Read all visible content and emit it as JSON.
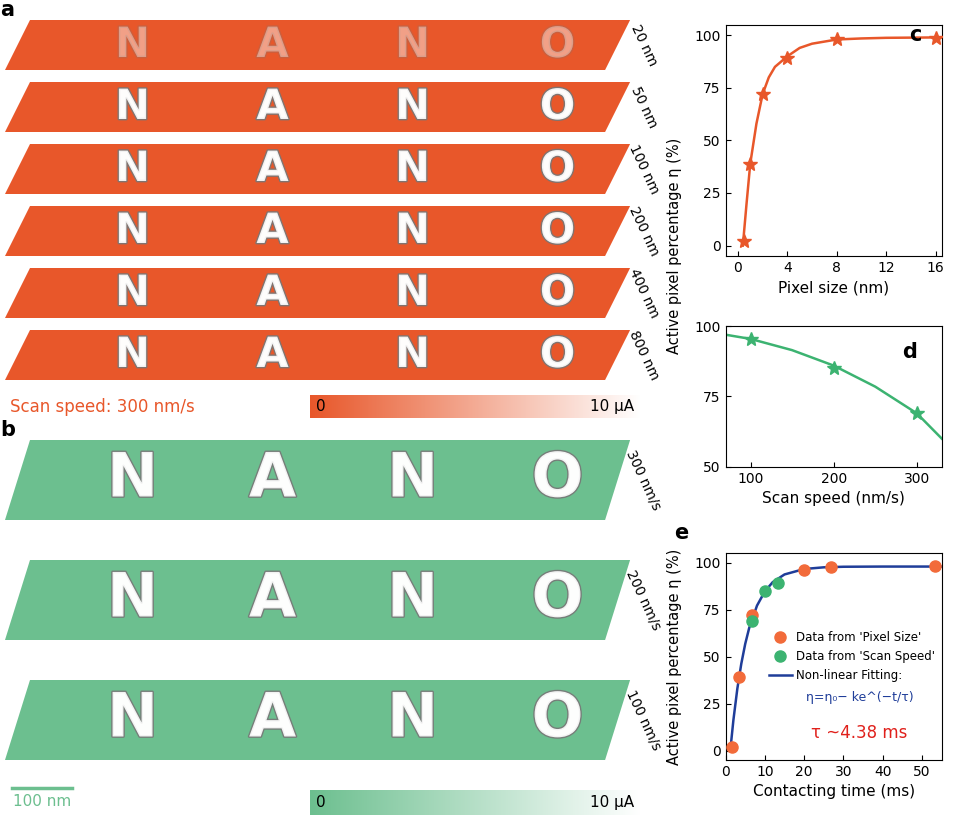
{
  "images": [
    {
      "panel_label": "a",
      "color": "#e8572a",
      "pattern": "NANO",
      "layers": [
        "20 nm",
        "50 nm",
        "100 nm",
        "200 nm",
        "400 nm",
        "800 nm"
      ],
      "caption": "Scan speed: 300 nm/s",
      "colorbar": {
        "range": [
          0,
          10
        ],
        "ticks": [
          {
            "value": 0,
            "label": "0"
          },
          {
            "value": 10,
            "label": "10 μA"
          }
        ]
      }
    },
    {
      "panel_label": "b",
      "color": "#6cbf8f",
      "pattern": "NANO",
      "layers": [
        "300 nm/s",
        "200 nm/s",
        "100 nm/s"
      ],
      "scale_bar": "100 nm",
      "colorbar": {
        "range": [
          0,
          10
        ],
        "ticks": [
          {
            "value": 0,
            "label": "0"
          },
          {
            "value": 10,
            "label": "10 μA"
          }
        ]
      }
    }
  ],
  "chart_data": [
    {
      "panel_label": "c",
      "type": "scatter",
      "xlabel": "Pixel size (nm)",
      "ylabel": "Active pixel percentage η (%)",
      "xlim": [
        -1,
        16.5
      ],
      "xticks": [
        0,
        4,
        8,
        12,
        16
      ],
      "ylim": [
        -5,
        105
      ],
      "yticks": [
        0,
        25,
        50,
        75,
        100
      ],
      "series": [
        {
          "type": "scatter",
          "marker": "star",
          "color": "#e8572a",
          "x": [
            0.5,
            1,
            2,
            4,
            8,
            16
          ],
          "values": [
            2,
            39,
            72,
            89,
            98,
            98.5
          ]
        },
        {
          "type": "line",
          "line_style": "solid",
          "color": "#e8572a",
          "x": [
            0.4,
            0.7,
            1,
            1.5,
            2,
            2.5,
            3,
            4,
            5,
            6,
            8,
            10,
            12,
            16.5
          ],
          "values": [
            0,
            20,
            39,
            58,
            72,
            80,
            85,
            90,
            94,
            96,
            98,
            98.5,
            98.8,
            99
          ]
        }
      ]
    },
    {
      "panel_label": "d",
      "type": "scatter",
      "xlabel": "Scan speed (nm/s)",
      "xlim": [
        70,
        330
      ],
      "xticks": [
        100,
        200,
        300
      ],
      "ylim": [
        50,
        100
      ],
      "yticks": [
        50,
        75,
        100
      ],
      "series": [
        {
          "type": "scatter",
          "marker": "star",
          "color": "#3cb371",
          "x": [
            100,
            200,
            300
          ],
          "values": [
            95.5,
            85,
            69
          ]
        },
        {
          "type": "line",
          "line_style": "solid",
          "color": "#3cb371",
          "x": [
            70,
            100,
            150,
            200,
            250,
            300,
            330
          ],
          "values": [
            97,
            95.5,
            91.5,
            86,
            78.5,
            69,
            60
          ]
        }
      ]
    },
    {
      "panel_label": "e",
      "type": "scatter",
      "xlabel": "Contacting time (ms)",
      "ylabel": "Active pixel percentage η (%)",
      "xlim": [
        0,
        55
      ],
      "xticks": [
        0,
        10,
        20,
        30,
        40,
        50
      ],
      "ylim": [
        -5,
        105
      ],
      "yticks": [
        0,
        25,
        50,
        75,
        100
      ],
      "legend": "center right",
      "series": [
        {
          "name": "Data from 'Pixel Size'",
          "type": "scatter",
          "marker": "circle",
          "color": "#f26b3a",
          "x": [
            1.7,
            3.3,
            6.7,
            20,
            26.7,
            53.3
          ],
          "values": [
            2,
            39,
            72,
            96,
            98,
            98.5
          ]
        },
        {
          "name": "Data from 'Scan Speed'",
          "type": "scatter",
          "marker": "circle",
          "color": "#3cb371",
          "x": [
            6.7,
            10,
            13.3
          ],
          "values": [
            69,
            85,
            89
          ]
        },
        {
          "name": "Non-linear Fitting:",
          "type": "line",
          "line_style": "solid",
          "color": "#1f3d99",
          "x": [
            1.2,
            2,
            3,
            4,
            5,
            6,
            8,
            10,
            12,
            15,
            20,
            25,
            30,
            40,
            55
          ],
          "values": [
            0,
            16.3,
            33,
            46.2,
            56.8,
            65.2,
            77.2,
            84.8,
            89.7,
            93.8,
            96.7,
            97.6,
            97.9,
            98,
            98
          ]
        }
      ],
      "annotations": [
        {
          "text": "η=η₀− ke^(−t/τ)",
          "color": "#1f3d99"
        },
        {
          "text": "τ ~4.38 ms",
          "color": "#e0201b"
        }
      ]
    }
  ]
}
